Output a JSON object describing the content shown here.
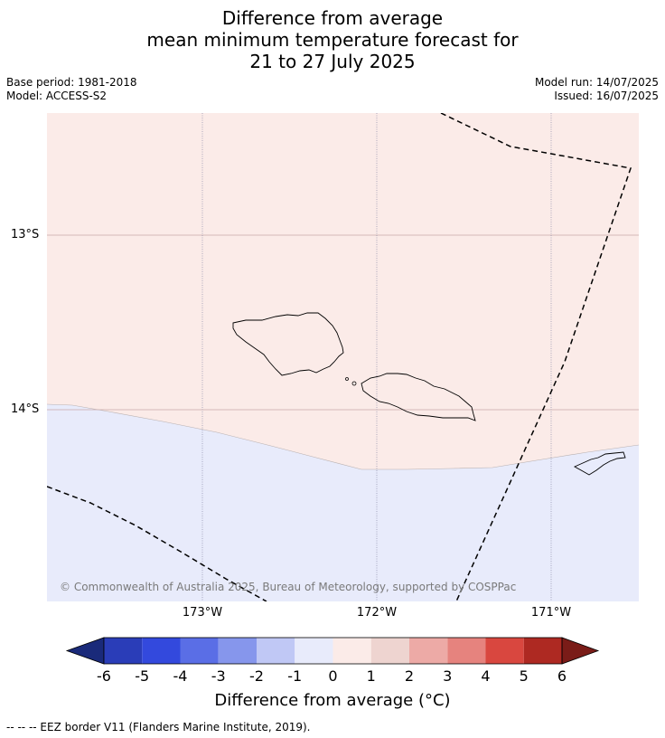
{
  "title": {
    "line1": "Difference from average",
    "line2": "mean minimum temperature forecast for",
    "line3": "21 to 27 July 2025"
  },
  "meta": {
    "base_period": "Base period: 1981-2018",
    "model": "Model: ACCESS-S2",
    "model_run": "Model run: 14/07/2025",
    "issued": "Issued: 16/07/2025"
  },
  "map": {
    "lat_labels": [
      "13°S",
      "14°S"
    ],
    "lon_labels": [
      "173°W",
      "172°W",
      "171°W"
    ],
    "credit": "© Commonwealth of Australia 2025, Bureau of Meteorology, supported by COSPPac",
    "region_colors": {
      "positive_0_1": "#fbebe8",
      "negative_-1_0": "#e8ebfb"
    },
    "features": [
      "samoa-coastline-icon",
      "american-samoa-coastline-icon",
      "eez-border"
    ]
  },
  "colorbar": {
    "ticks": [
      "-6",
      "-5",
      "-4",
      "-3",
      "-2",
      "-1",
      "0",
      "1",
      "2",
      "3",
      "4",
      "5",
      "6"
    ],
    "colors": [
      "#1a2a7a",
      "#2a3db8",
      "#3349dd",
      "#5a6ee6",
      "#8696ec",
      "#c0c8f5",
      "#e8ebfb",
      "#fbebe8",
      "#eed4d0",
      "#edaaa6",
      "#e6837e",
      "#d9473f",
      "#ae2922",
      "#7a1c18"
    ],
    "label": "Difference from average ($^\\circ$C)",
    "label_display": "Difference from average (°C)"
  },
  "footnote": "--  --  -- EEZ border V11 (Flanders Marine Institute, 2019)."
}
